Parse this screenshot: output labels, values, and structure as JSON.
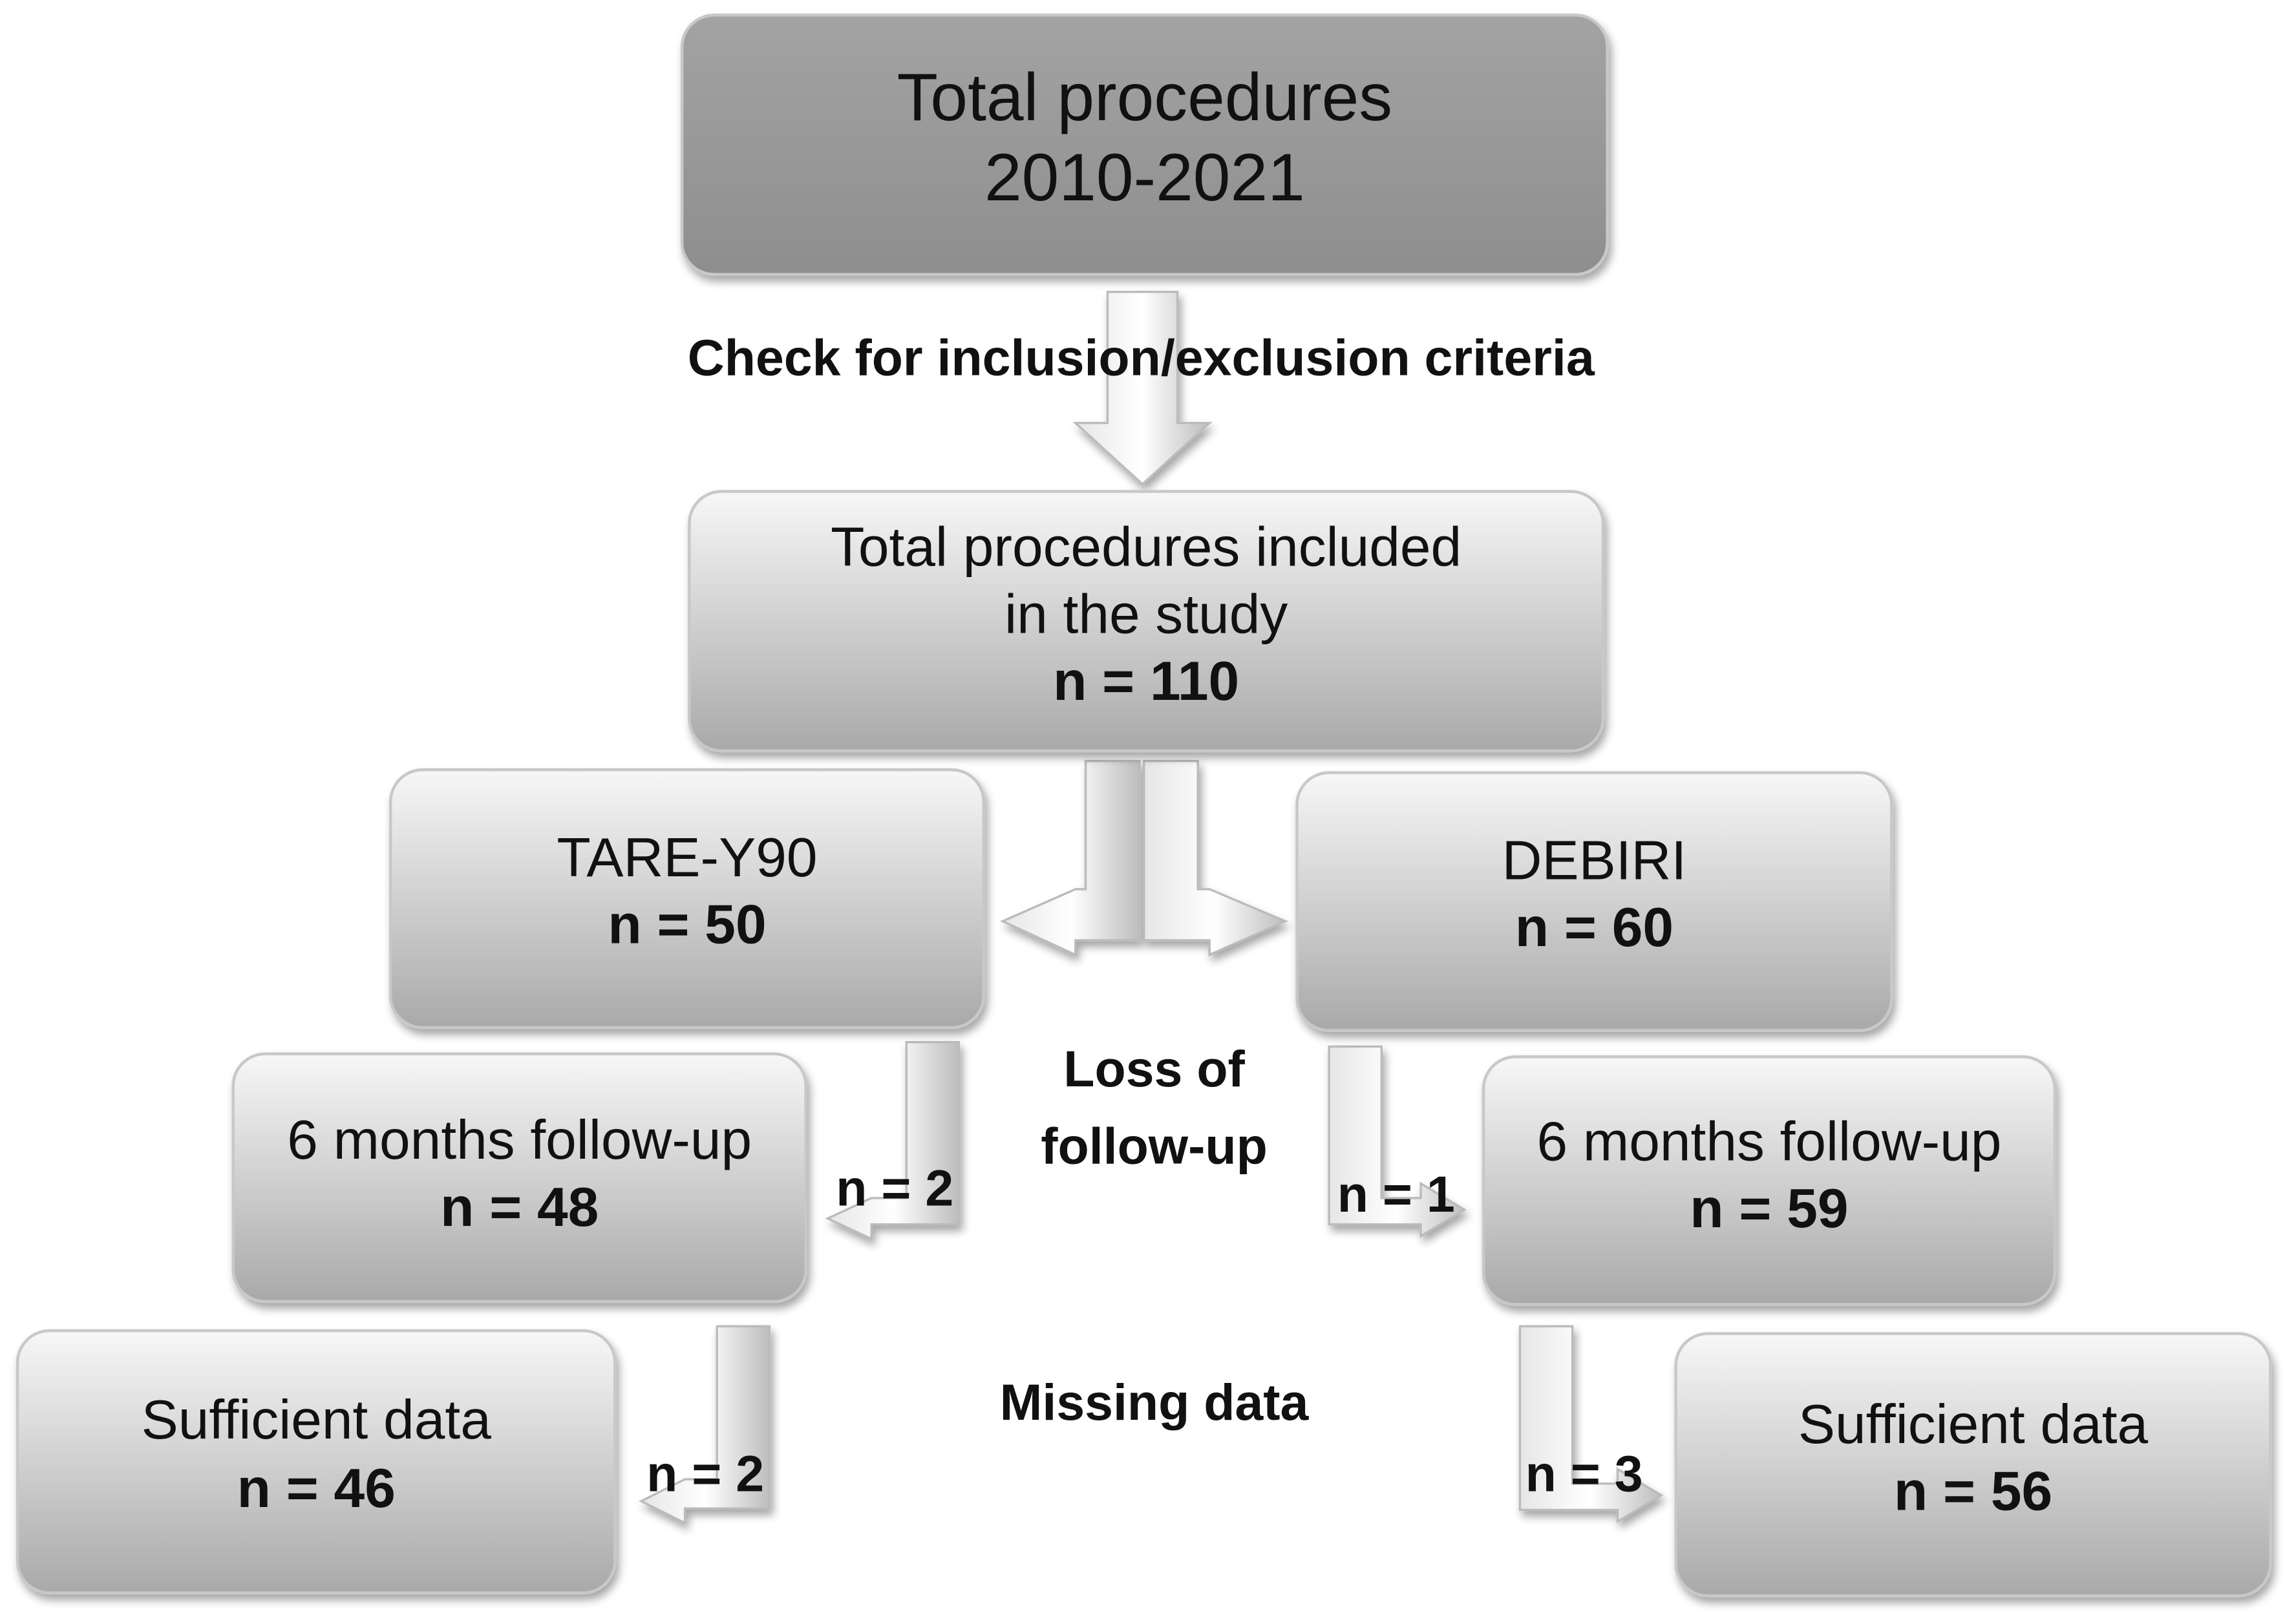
{
  "nodes": [
    {
      "lines": [
        "Total procedures",
        "2010-2021"
      ]
    },
    {
      "lines": [
        "Total procedures included",
        "in the study"
      ],
      "count": "n = 110"
    },
    {
      "lines": [
        "TARE-Y90"
      ],
      "count": "n = 50"
    },
    {
      "lines": [
        "DEBIRI"
      ],
      "count": "n = 60"
    },
    {
      "lines": [
        "6 months follow-up"
      ],
      "count": "n = 48"
    },
    {
      "lines": [
        "6 months follow-up"
      ],
      "count": "n = 59"
    },
    {
      "lines": [
        "Sufficient data"
      ],
      "count": "n = 46"
    },
    {
      "lines": [
        "Sufficient data"
      ],
      "count": "n = 56"
    }
  ],
  "steps": {
    "screening": "Check for inclusion/exclusion criteria",
    "loss": [
      "Loss of",
      "follow-up"
    ],
    "missing": "Missing data"
  },
  "exclusions": [
    "n = 2",
    "n = 1",
    "n = 2",
    "n = 3"
  ]
}
